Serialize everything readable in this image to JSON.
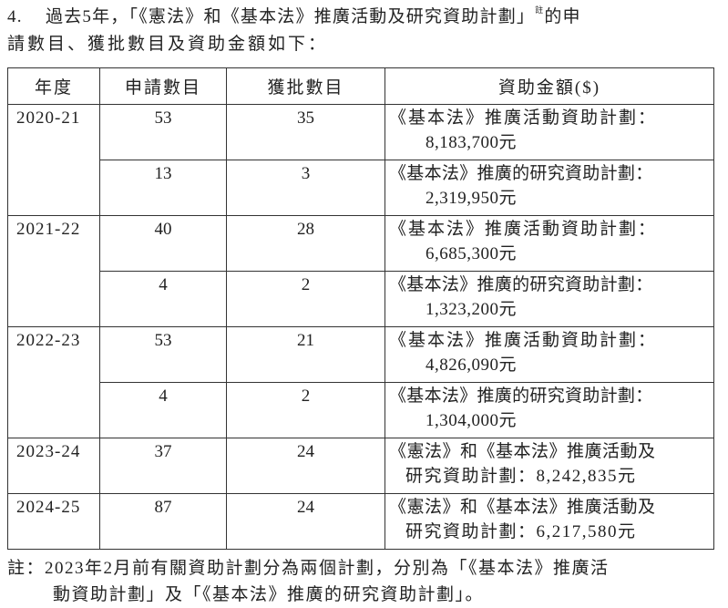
{
  "intro": {
    "number": "4.",
    "line1": "過去5年，「《憲法》和《基本法》推廣活動及研究資助計劃」",
    "note_mark": "註",
    "line1_end": "的申",
    "line2": "請數目、獲批數目及資助金額如下："
  },
  "table": {
    "headers": [
      "年度",
      "申請數目",
      "獲批數目",
      "資助金額($)"
    ],
    "groups": [
      {
        "year": "2020-21",
        "rows": [
          {
            "applications": "53",
            "approved": "35",
            "funding": [
              "《基本法》推廣活動資助計劃：",
              "8,183,700元"
            ]
          },
          {
            "applications": "13",
            "approved": "3",
            "funding": [
              "《基本法》推廣的研究資助計劃：",
              "2,319,950元"
            ]
          }
        ]
      },
      {
        "year": "2021-22",
        "rows": [
          {
            "applications": "40",
            "approved": "28",
            "funding": [
              "《基本法》推廣活動資助計劃：",
              "6,685,300元"
            ]
          },
          {
            "applications": "4",
            "approved": "2",
            "funding": [
              "《基本法》推廣的研究資助計劃：",
              "1,323,200元"
            ]
          }
        ]
      },
      {
        "year": "2022-23",
        "rows": [
          {
            "applications": "53",
            "approved": "21",
            "funding": [
              "《基本法》推廣活動資助計劃：",
              "4,826,090元"
            ]
          },
          {
            "applications": "4",
            "approved": "2",
            "funding": [
              "《基本法》推廣的研究資助計劃：",
              "1,304,000元"
            ]
          }
        ]
      },
      {
        "year": "2023-24",
        "rows": [
          {
            "applications": "37",
            "approved": "24",
            "funding": [
              "《憲法》和《基本法》推廣活動及",
              "研究資助計劃：8,242,835元"
            ]
          }
        ]
      },
      {
        "year": "2024-25",
        "rows": [
          {
            "applications": "87",
            "approved": "24",
            "funding": [
              "《憲法》和《基本法》推廣活動及",
              "研究資助計劃：6,217,580元"
            ]
          }
        ]
      }
    ]
  },
  "note": {
    "line1": "註：2023年2月前有關資助計劃分為兩個計劃，分別為「《基本法》推廣活",
    "line2": "動資助計劃」及「《基本法》推廣的研究資助計劃」。"
  }
}
